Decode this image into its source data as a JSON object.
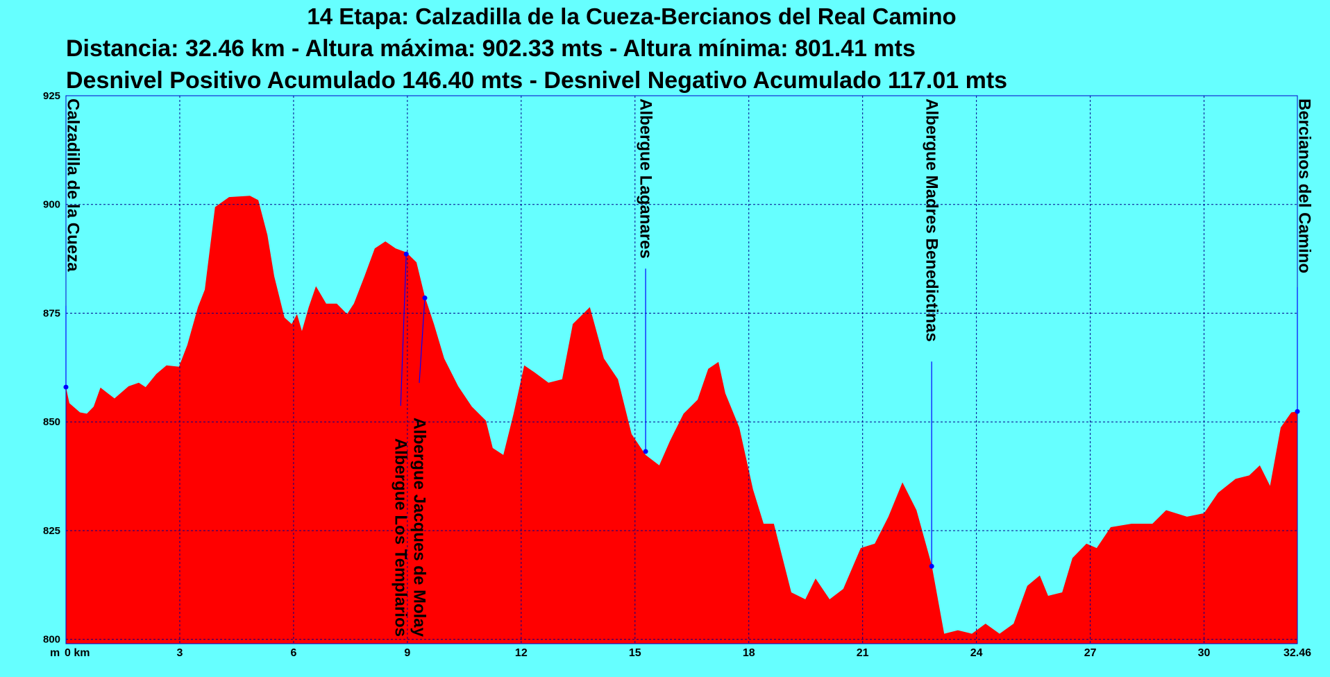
{
  "chart_data": {
    "type": "area",
    "title": "14 Etapa: Calzadilla de la Cueza-Bercianos del Real Camino",
    "subtitles": [
      "Distancia: 32.46 km - Altura máxima: 902.33 mts - Altura mínima: 801.41 mts",
      "Desnivel Positivo Acumulado 146.40 mts - Desnivel Negativo Acumulado 117.01 mts"
    ],
    "y_unit_label": "m",
    "color": "#ff0000",
    "grid": true,
    "xlim": [
      0,
      32.46
    ],
    "ylim": [
      799,
      925
    ],
    "xticks": [
      {
        "value": 0,
        "label": "0 km"
      },
      3,
      6,
      9,
      12,
      15,
      18,
      21,
      24,
      27,
      30,
      32.46
    ],
    "yticks": [
      800,
      825,
      850,
      875,
      900,
      925
    ],
    "x": [
      0,
      0.09,
      0.37,
      0.55,
      0.73,
      0.91,
      1.1,
      1.28,
      1.65,
      1.92,
      2.1,
      2.38,
      2.65,
      2.98,
      3.2,
      3.48,
      3.66,
      3.93,
      4.3,
      4.85,
      5.07,
      5.31,
      5.49,
      5.76,
      5.95,
      6.09,
      6.22,
      6.4,
      6.59,
      6.86,
      7.14,
      7.41,
      7.59,
      7.87,
      8.14,
      8.42,
      8.69,
      8.97,
      9.24,
      9.46,
      9.7,
      9.97,
      10.34,
      10.7,
      11.07,
      11.25,
      11.53,
      11.8,
      12.08,
      12.35,
      12.72,
      13.08,
      13.36,
      13.81,
      14.18,
      14.55,
      14.91,
      15.28,
      15.64,
      15.92,
      16.28,
      16.65,
      16.93,
      17.2,
      17.38,
      17.75,
      18.11,
      18.39,
      18.66,
      19.12,
      19.49,
      19.76,
      20.13,
      20.49,
      20.95,
      21.32,
      21.68,
      22.05,
      22.42,
      22.82,
      23.15,
      23.51,
      23.88,
      24.24,
      24.61,
      24.98,
      25.34,
      25.67,
      25.89,
      26.26,
      26.53,
      26.9,
      27.17,
      27.54,
      28.09,
      28.64,
      29.0,
      29.55,
      30.0,
      30.37,
      30.83,
      31.19,
      31.47,
      31.74,
      32.02,
      32.3,
      32.46
    ],
    "values": [
      858,
      854.3,
      852.2,
      851.9,
      853.5,
      857.9,
      856.6,
      855.4,
      858.2,
      859,
      858,
      861,
      863,
      862.7,
      867.7,
      876.4,
      880.4,
      899.4,
      901.7,
      902,
      901,
      893,
      883.5,
      874,
      872.5,
      874.8,
      870.9,
      876.4,
      881.2,
      877.2,
      877.2,
      874.8,
      877.2,
      883.5,
      889.9,
      891.5,
      889.9,
      889,
      886.7,
      878.8,
      872.5,
      864.6,
      858.2,
      853.5,
      850.3,
      844,
      842.4,
      851.9,
      863,
      861.4,
      859,
      859.8,
      872.5,
      876.4,
      864.6,
      859.8,
      847.2,
      842.4,
      840,
      845.6,
      851.9,
      855.1,
      862.2,
      863.8,
      856.6,
      848.7,
      834.5,
      826.6,
      826.6,
      810.8,
      809.2,
      814,
      809.2,
      811.6,
      821,
      822,
      828.2,
      836.1,
      829.7,
      817.1,
      801.3,
      802.1,
      801.3,
      803.6,
      801.3,
      803.6,
      812.3,
      814.7,
      810,
      810.8,
      818.7,
      822,
      821,
      825.8,
      826.6,
      826.6,
      829.7,
      828.2,
      829,
      833.7,
      836.9,
      837.7,
      840,
      835.3,
      848.7,
      852.2,
      852.4
    ],
    "annotations": [
      {
        "label": "Calzadilla de la Cueza",
        "x": 0,
        "y": 858
      },
      {
        "label": "Albergue Los Templarios",
        "x": 8.97,
        "y": 888.6
      },
      {
        "label": "Albergue Jacques de Molay",
        "x": 9.46,
        "y": 878.5
      },
      {
        "label": "Albergue Laganares",
        "x": 15.28,
        "y": 843.2
      },
      {
        "label": "Albergue Madres Benedictinas",
        "x": 22.82,
        "y": 816.8
      },
      {
        "label": "Bercianos del Camino",
        "x": 32.46,
        "y": 852.4
      }
    ]
  }
}
